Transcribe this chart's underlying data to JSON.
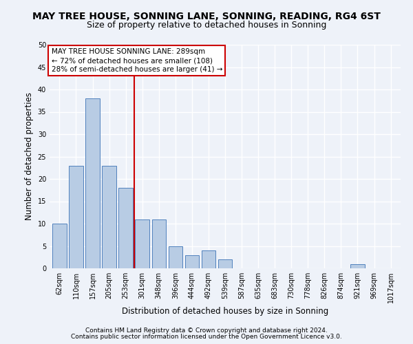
{
  "title": "MAY TREE HOUSE, SONNING LANE, SONNING, READING, RG4 6ST",
  "subtitle": "Size of property relative to detached houses in Sonning",
  "xlabel": "Distribution of detached houses by size in Sonning",
  "ylabel": "Number of detached properties",
  "categories": [
    "62sqm",
    "110sqm",
    "157sqm",
    "205sqm",
    "253sqm",
    "301sqm",
    "348sqm",
    "396sqm",
    "444sqm",
    "492sqm",
    "539sqm",
    "587sqm",
    "635sqm",
    "683sqm",
    "730sqm",
    "778sqm",
    "826sqm",
    "874sqm",
    "921sqm",
    "969sqm",
    "1017sqm"
  ],
  "values": [
    10,
    23,
    38,
    23,
    18,
    11,
    11,
    5,
    3,
    4,
    2,
    0,
    0,
    0,
    0,
    0,
    0,
    0,
    1,
    0,
    0
  ],
  "bar_color": "#b8cce4",
  "bar_edge_color": "#4f81bd",
  "vline_color": "#cc0000",
  "vline_x_index": 5,
  "annotation_text": "MAY TREE HOUSE SONNING LANE: 289sqm\n← 72% of detached houses are smaller (108)\n28% of semi-detached houses are larger (41) →",
  "annotation_box_color": "#ffffff",
  "annotation_box_edge": "#cc0000",
  "ylim": [
    0,
    50
  ],
  "yticks": [
    0,
    5,
    10,
    15,
    20,
    25,
    30,
    35,
    40,
    45,
    50
  ],
  "footer1": "Contains HM Land Registry data © Crown copyright and database right 2024.",
  "footer2": "Contains public sector information licensed under the Open Government Licence v3.0.",
  "background_color": "#eef2f9",
  "grid_color": "#ffffff",
  "title_fontsize": 10,
  "subtitle_fontsize": 9,
  "axis_label_fontsize": 8.5,
  "tick_fontsize": 7,
  "annotation_fontsize": 7.5,
  "footer_fontsize": 6.5
}
